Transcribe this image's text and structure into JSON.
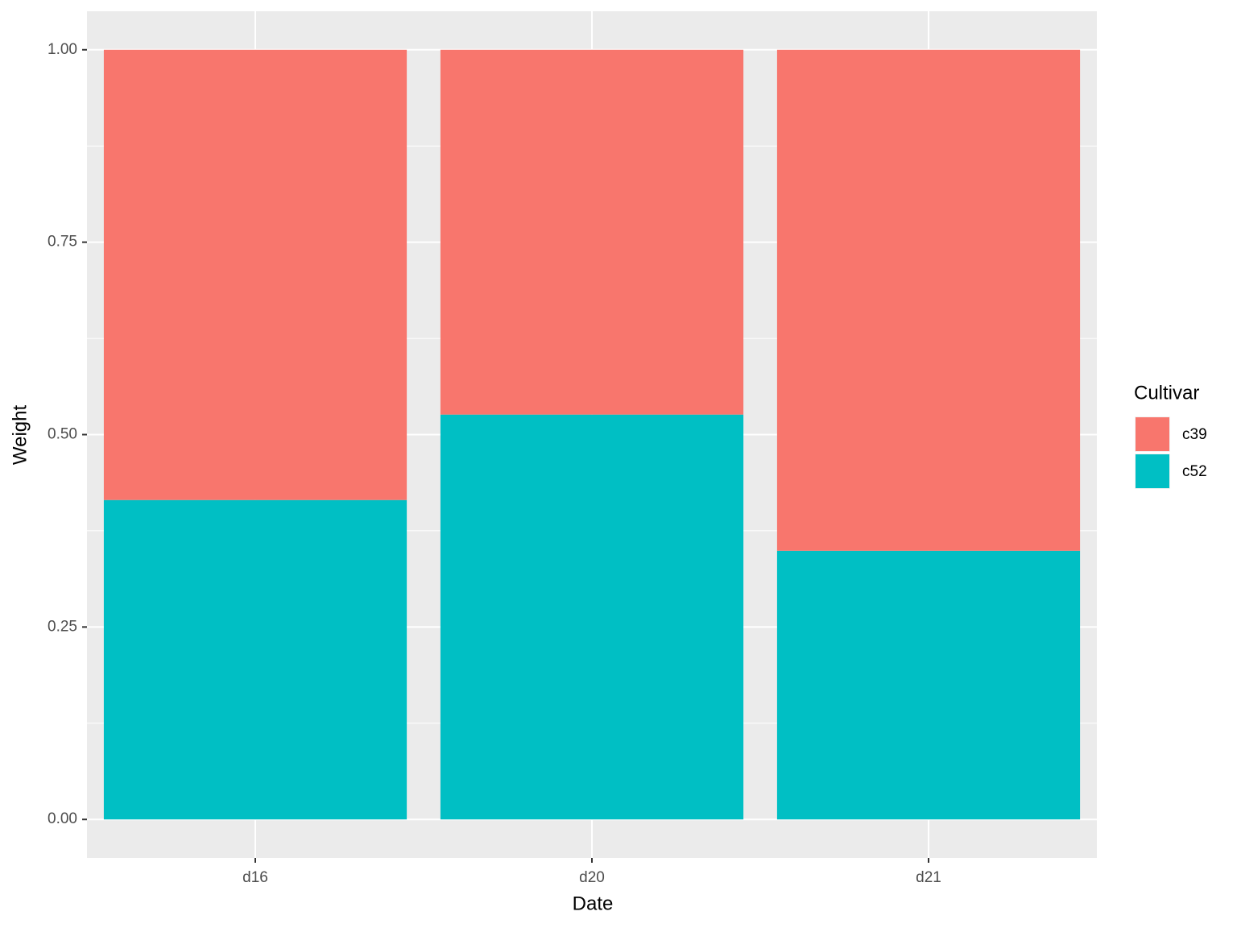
{
  "chart_data": {
    "type": "stacked-bar",
    "x_label": "Date",
    "y_label": "Weight",
    "legend_title": "Cultivar",
    "categories": [
      "d16",
      "d20",
      "d21"
    ],
    "series": [
      {
        "name": "c39",
        "color": "#f8766d",
        "values": [
          0.585,
          0.474,
          0.651
        ]
      },
      {
        "name": "c52",
        "color": "#00bfc4",
        "values": [
          0.415,
          0.526,
          0.349
        ]
      }
    ],
    "ylim": [
      -0.05,
      1.05
    ],
    "yticks": [
      {
        "value": 0,
        "label": "0.00"
      },
      {
        "value": 0.25,
        "label": "0.25"
      },
      {
        "value": 0.5,
        "label": "0.50"
      },
      {
        "value": 0.75,
        "label": "0.75"
      },
      {
        "value": 1,
        "label": "1.00"
      }
    ],
    "grid": true,
    "legend": "right"
  }
}
